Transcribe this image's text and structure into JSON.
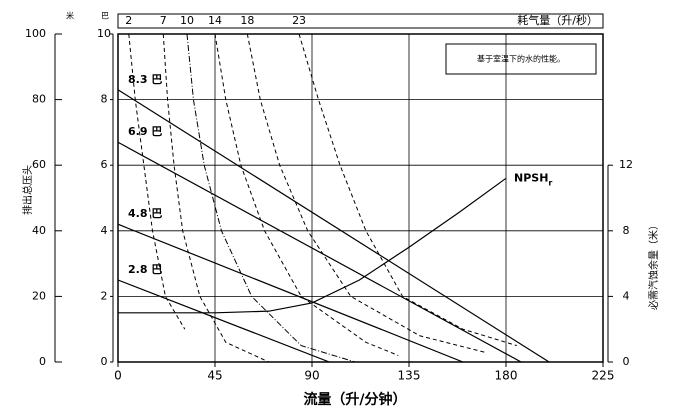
{
  "chart_data": {
    "type": "line",
    "x_title": "流量（升/分钟）",
    "y_title": "排出总压头",
    "y2_title": "必需汽蚀余量（米）",
    "y_unit": "巴",
    "y_m_unit": "米",
    "note": "基于室温下的水的性能。",
    "air_title": "耗气量（升/秒）",
    "xlim": [
      0,
      225
    ],
    "xticks": [
      0,
      45,
      90,
      135,
      180,
      225
    ],
    "ylim": [
      0,
      10
    ],
    "yticks": [
      0,
      2,
      4,
      6,
      8,
      10
    ],
    "ylim_m": [
      0,
      100
    ],
    "yticks_m": [
      0,
      20,
      40,
      60,
      80,
      100
    ],
    "y2lim": [
      0,
      20
    ],
    "y2ticks": [
      0,
      4,
      8,
      12
    ],
    "grid": true,
    "series": [
      {
        "name": "8.3 巴",
        "color": "#000000",
        "x": [
          0,
          200
        ],
        "values": [
          8.3,
          0
        ]
      },
      {
        "name": "6.9 巴",
        "color": "#000000",
        "x": [
          0,
          187
        ],
        "values": [
          6.7,
          0
        ]
      },
      {
        "name": "4.8 巴",
        "color": "#000000",
        "x": [
          0,
          160
        ],
        "values": [
          4.2,
          0
        ]
      },
      {
        "name": "2.8 巴",
        "color": "#000000",
        "x": [
          0,
          98
        ],
        "values": [
          2.5,
          0
        ]
      },
      {
        "name": "NPSH",
        "name_sub": "r",
        "axis": "y2",
        "color": "#000000",
        "x": [
          0,
          45,
          70,
          90,
          112,
          135,
          158,
          180
        ],
        "values": [
          3,
          3,
          3.1,
          3.6,
          5,
          7,
          9.1,
          11.2
        ]
      }
    ],
    "air_curves": [
      {
        "label": "2",
        "x": [
          5,
          8,
          12,
          16,
          22,
          31
        ],
        "values": [
          10,
          8,
          6,
          4,
          2,
          1
        ]
      },
      {
        "label": "7",
        "x": [
          21,
          23,
          26,
          30,
          38,
          50,
          70
        ],
        "values": [
          10,
          8,
          6,
          4,
          2,
          0.6,
          0
        ]
      },
      {
        "label": "10",
        "x": [
          32,
          35,
          40,
          48,
          62,
          85,
          110
        ],
        "values": [
          10,
          8,
          6,
          4,
          2,
          0.5,
          0
        ]
      },
      {
        "label": "14",
        "x": [
          45,
          50,
          57,
          68,
          85,
          115,
          130
        ],
        "values": [
          10,
          8,
          6,
          4,
          2,
          0.6,
          0.2
        ]
      },
      {
        "label": "18",
        "x": [
          60,
          66,
          75,
          88,
          108,
          140,
          170
        ],
        "values": [
          10,
          8,
          6,
          4,
          2,
          0.8,
          0.3
        ]
      },
      {
        "label": "23",
        "x": [
          84,
          93,
          103,
          115,
          132,
          160,
          185
        ],
        "values": [
          10,
          8,
          6,
          4,
          2,
          1,
          0.5
        ]
      }
    ]
  }
}
